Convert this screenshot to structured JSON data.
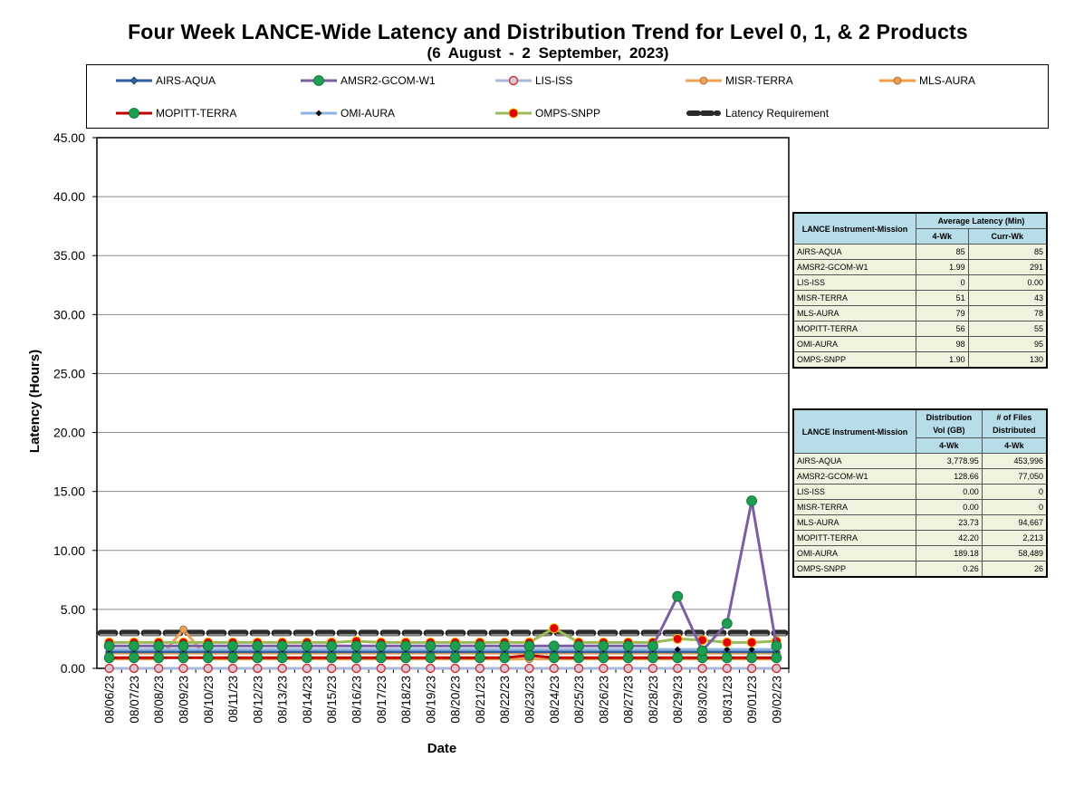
{
  "chart_data": {
    "type": "line",
    "title": "Four Week LANCE-Wide Latency and Distribution Trend for Level 0, 1, & 2 Products",
    "subtitle": "(6  August   - 2  September,  2023)",
    "xlabel": "Date",
    "ylabel": "Latency (Hours)",
    "ylim": [
      0,
      45
    ],
    "yticks": [
      "0.00",
      "5.00",
      "10.00",
      "15.00",
      "20.00",
      "25.00",
      "30.00",
      "35.00",
      "40.00",
      "45.00"
    ],
    "grid": true,
    "legend_position": "top",
    "categories": [
      "08/06/23",
      "08/07/23",
      "08/08/23",
      "08/09/23",
      "08/10/23",
      "08/11/23",
      "08/12/23",
      "08/13/23",
      "08/14/23",
      "08/15/23",
      "08/16/23",
      "08/17/23",
      "08/18/23",
      "08/19/23",
      "08/20/23",
      "08/21/23",
      "08/22/23",
      "08/23/23",
      "08/24/23",
      "08/25/23",
      "08/26/23",
      "08/27/23",
      "08/28/23",
      "08/29/23",
      "08/30/23",
      "08/31/23",
      "09/01/23",
      "09/02/23"
    ],
    "series": [
      {
        "name": "AIRS-AQUA",
        "color": "#2f5f9e",
        "marker": "diamond",
        "values": [
          1.4,
          1.4,
          1.4,
          1.4,
          1.4,
          1.4,
          1.4,
          1.4,
          1.4,
          1.4,
          1.4,
          1.4,
          1.4,
          1.4,
          1.4,
          1.4,
          1.4,
          1.4,
          1.4,
          1.4,
          1.4,
          1.4,
          1.4,
          1.4,
          1.4,
          1.4,
          1.4,
          1.4
        ]
      },
      {
        "name": "AMSR2-GCOM-W1",
        "color": "#7b5fa2",
        "marker": "circle-green",
        "values": [
          1.9,
          1.9,
          1.9,
          1.9,
          1.9,
          1.9,
          1.9,
          1.9,
          1.9,
          1.9,
          1.9,
          1.9,
          1.9,
          1.9,
          1.9,
          1.9,
          1.9,
          1.9,
          1.9,
          1.9,
          1.9,
          1.9,
          1.9,
          6.1,
          1.5,
          3.8,
          14.2,
          1.9
        ]
      },
      {
        "name": "LIS-ISS",
        "color": "#a9b9d9",
        "marker": "circle-open-red",
        "values": [
          0,
          0,
          0,
          0,
          0,
          0,
          0,
          0,
          0,
          0,
          0,
          0,
          0,
          0,
          0,
          0,
          0,
          0,
          0,
          0,
          0,
          0,
          0,
          0,
          0,
          0,
          0,
          0
        ]
      },
      {
        "name": "MISR-TERRA",
        "color": "#f0a050",
        "marker": "circle",
        "values": [
          0.8,
          0.8,
          0.8,
          3.3,
          0.8,
          0.8,
          0.8,
          0.8,
          0.8,
          0.8,
          0.8,
          0.8,
          0.8,
          0.8,
          0.8,
          0.8,
          0.8,
          0.8,
          0.8,
          0.8,
          0.8,
          0.8,
          0.8,
          0.8,
          0.8,
          0.8,
          0.8,
          0.8
        ]
      },
      {
        "name": "MLS-AURA",
        "color": "#f39c40",
        "marker": "circle",
        "values": [
          1.3,
          1.3,
          1.3,
          1.3,
          1.3,
          1.3,
          1.3,
          1.3,
          1.3,
          1.3,
          1.3,
          1.3,
          1.3,
          1.3,
          1.3,
          1.3,
          1.3,
          1.3,
          1.3,
          1.3,
          1.3,
          1.3,
          1.3,
          1.3,
          1.3,
          1.3,
          1.3,
          1.3
        ]
      },
      {
        "name": "MOPITT-TERRA",
        "color": "#c00000",
        "marker": "circle-green",
        "values": [
          0.9,
          0.9,
          0.9,
          0.9,
          0.9,
          0.9,
          0.9,
          0.9,
          0.9,
          0.9,
          0.9,
          0.9,
          0.9,
          0.9,
          0.9,
          0.9,
          0.9,
          1.1,
          0.9,
          0.9,
          0.9,
          0.9,
          0.9,
          0.9,
          0.9,
          0.9,
          0.9,
          0.9
        ]
      },
      {
        "name": "OMI-AURA",
        "color": "#8fb4e3",
        "marker": "diamond-black",
        "values": [
          1.6,
          1.6,
          1.6,
          1.6,
          1.6,
          1.6,
          1.6,
          1.6,
          1.6,
          1.6,
          1.6,
          1.6,
          1.6,
          1.6,
          1.6,
          1.6,
          1.6,
          1.6,
          1.6,
          1.6,
          1.6,
          1.6,
          1.6,
          1.6,
          1.6,
          1.6,
          1.6,
          1.6
        ]
      },
      {
        "name": "OMPS-SNPP",
        "color": "#9bbb59",
        "marker": "circle-red",
        "values": [
          2.2,
          2.2,
          2.2,
          2.2,
          2.2,
          2.2,
          2.2,
          2.2,
          2.2,
          2.2,
          2.3,
          2.2,
          2.2,
          2.2,
          2.2,
          2.2,
          2.2,
          2.2,
          3.4,
          2.2,
          2.2,
          2.2,
          2.2,
          2.5,
          2.4,
          2.2,
          2.2,
          2.3
        ]
      },
      {
        "name": "Latency Requirement",
        "color": "#1f1f1f",
        "marker": "none",
        "dashed": true,
        "values": [
          3,
          3,
          3,
          3,
          3,
          3,
          3,
          3,
          3,
          3,
          3,
          3,
          3,
          3,
          3,
          3,
          3,
          3,
          3,
          3,
          3,
          3,
          3,
          3,
          3,
          3,
          3,
          3
        ]
      }
    ]
  },
  "latency_table": {
    "header_mission": "LANCE Instrument-Mission",
    "header_group": "Average Latency (Min)",
    "col1": "4-Wk",
    "col2": "Curr-Wk",
    "rows": [
      {
        "mission": "AIRS-AQUA",
        "wk4": "85",
        "curr": "85"
      },
      {
        "mission": "AMSR2-GCOM-W1",
        "wk4": "1.99",
        "curr": "291"
      },
      {
        "mission": "LIS-ISS",
        "wk4": "0",
        "curr": "0.00"
      },
      {
        "mission": "MISR-TERRA",
        "wk4": "51",
        "curr": "43"
      },
      {
        "mission": "MLS-AURA",
        "wk4": "79",
        "curr": "78"
      },
      {
        "mission": "MOPITT-TERRA",
        "wk4": "56",
        "curr": "55"
      },
      {
        "mission": "OMI-AURA",
        "wk4": "98",
        "curr": "95"
      },
      {
        "mission": "OMPS-SNPP",
        "wk4": "1.90",
        "curr": "130"
      }
    ]
  },
  "distribution_table": {
    "header_mission": "LANCE Instrument-Mission",
    "header_vol": "Distribution Vol (GB)",
    "header_files": "# of Files Distributed",
    "col1": "4-Wk",
    "col2": "4-Wk",
    "rows": [
      {
        "mission": "AIRS-AQUA",
        "vol": "3,778.95",
        "files": "453,996"
      },
      {
        "mission": "AMSR2-GCOM-W1",
        "vol": "128.66",
        "files": "77,050"
      },
      {
        "mission": "LIS-ISS",
        "vol": "0.00",
        "files": "0"
      },
      {
        "mission": "MISR-TERRA",
        "vol": "0.00",
        "files": "0"
      },
      {
        "mission": "MLS-AURA",
        "vol": "23.73",
        "files": "94,667"
      },
      {
        "mission": "MOPITT-TERRA",
        "vol": "42.20",
        "files": "2,213"
      },
      {
        "mission": "OMI-AURA",
        "vol": "189.18",
        "files": "58,489"
      },
      {
        "mission": "OMPS-SNPP",
        "vol": "0.26",
        "files": "26"
      }
    ]
  }
}
